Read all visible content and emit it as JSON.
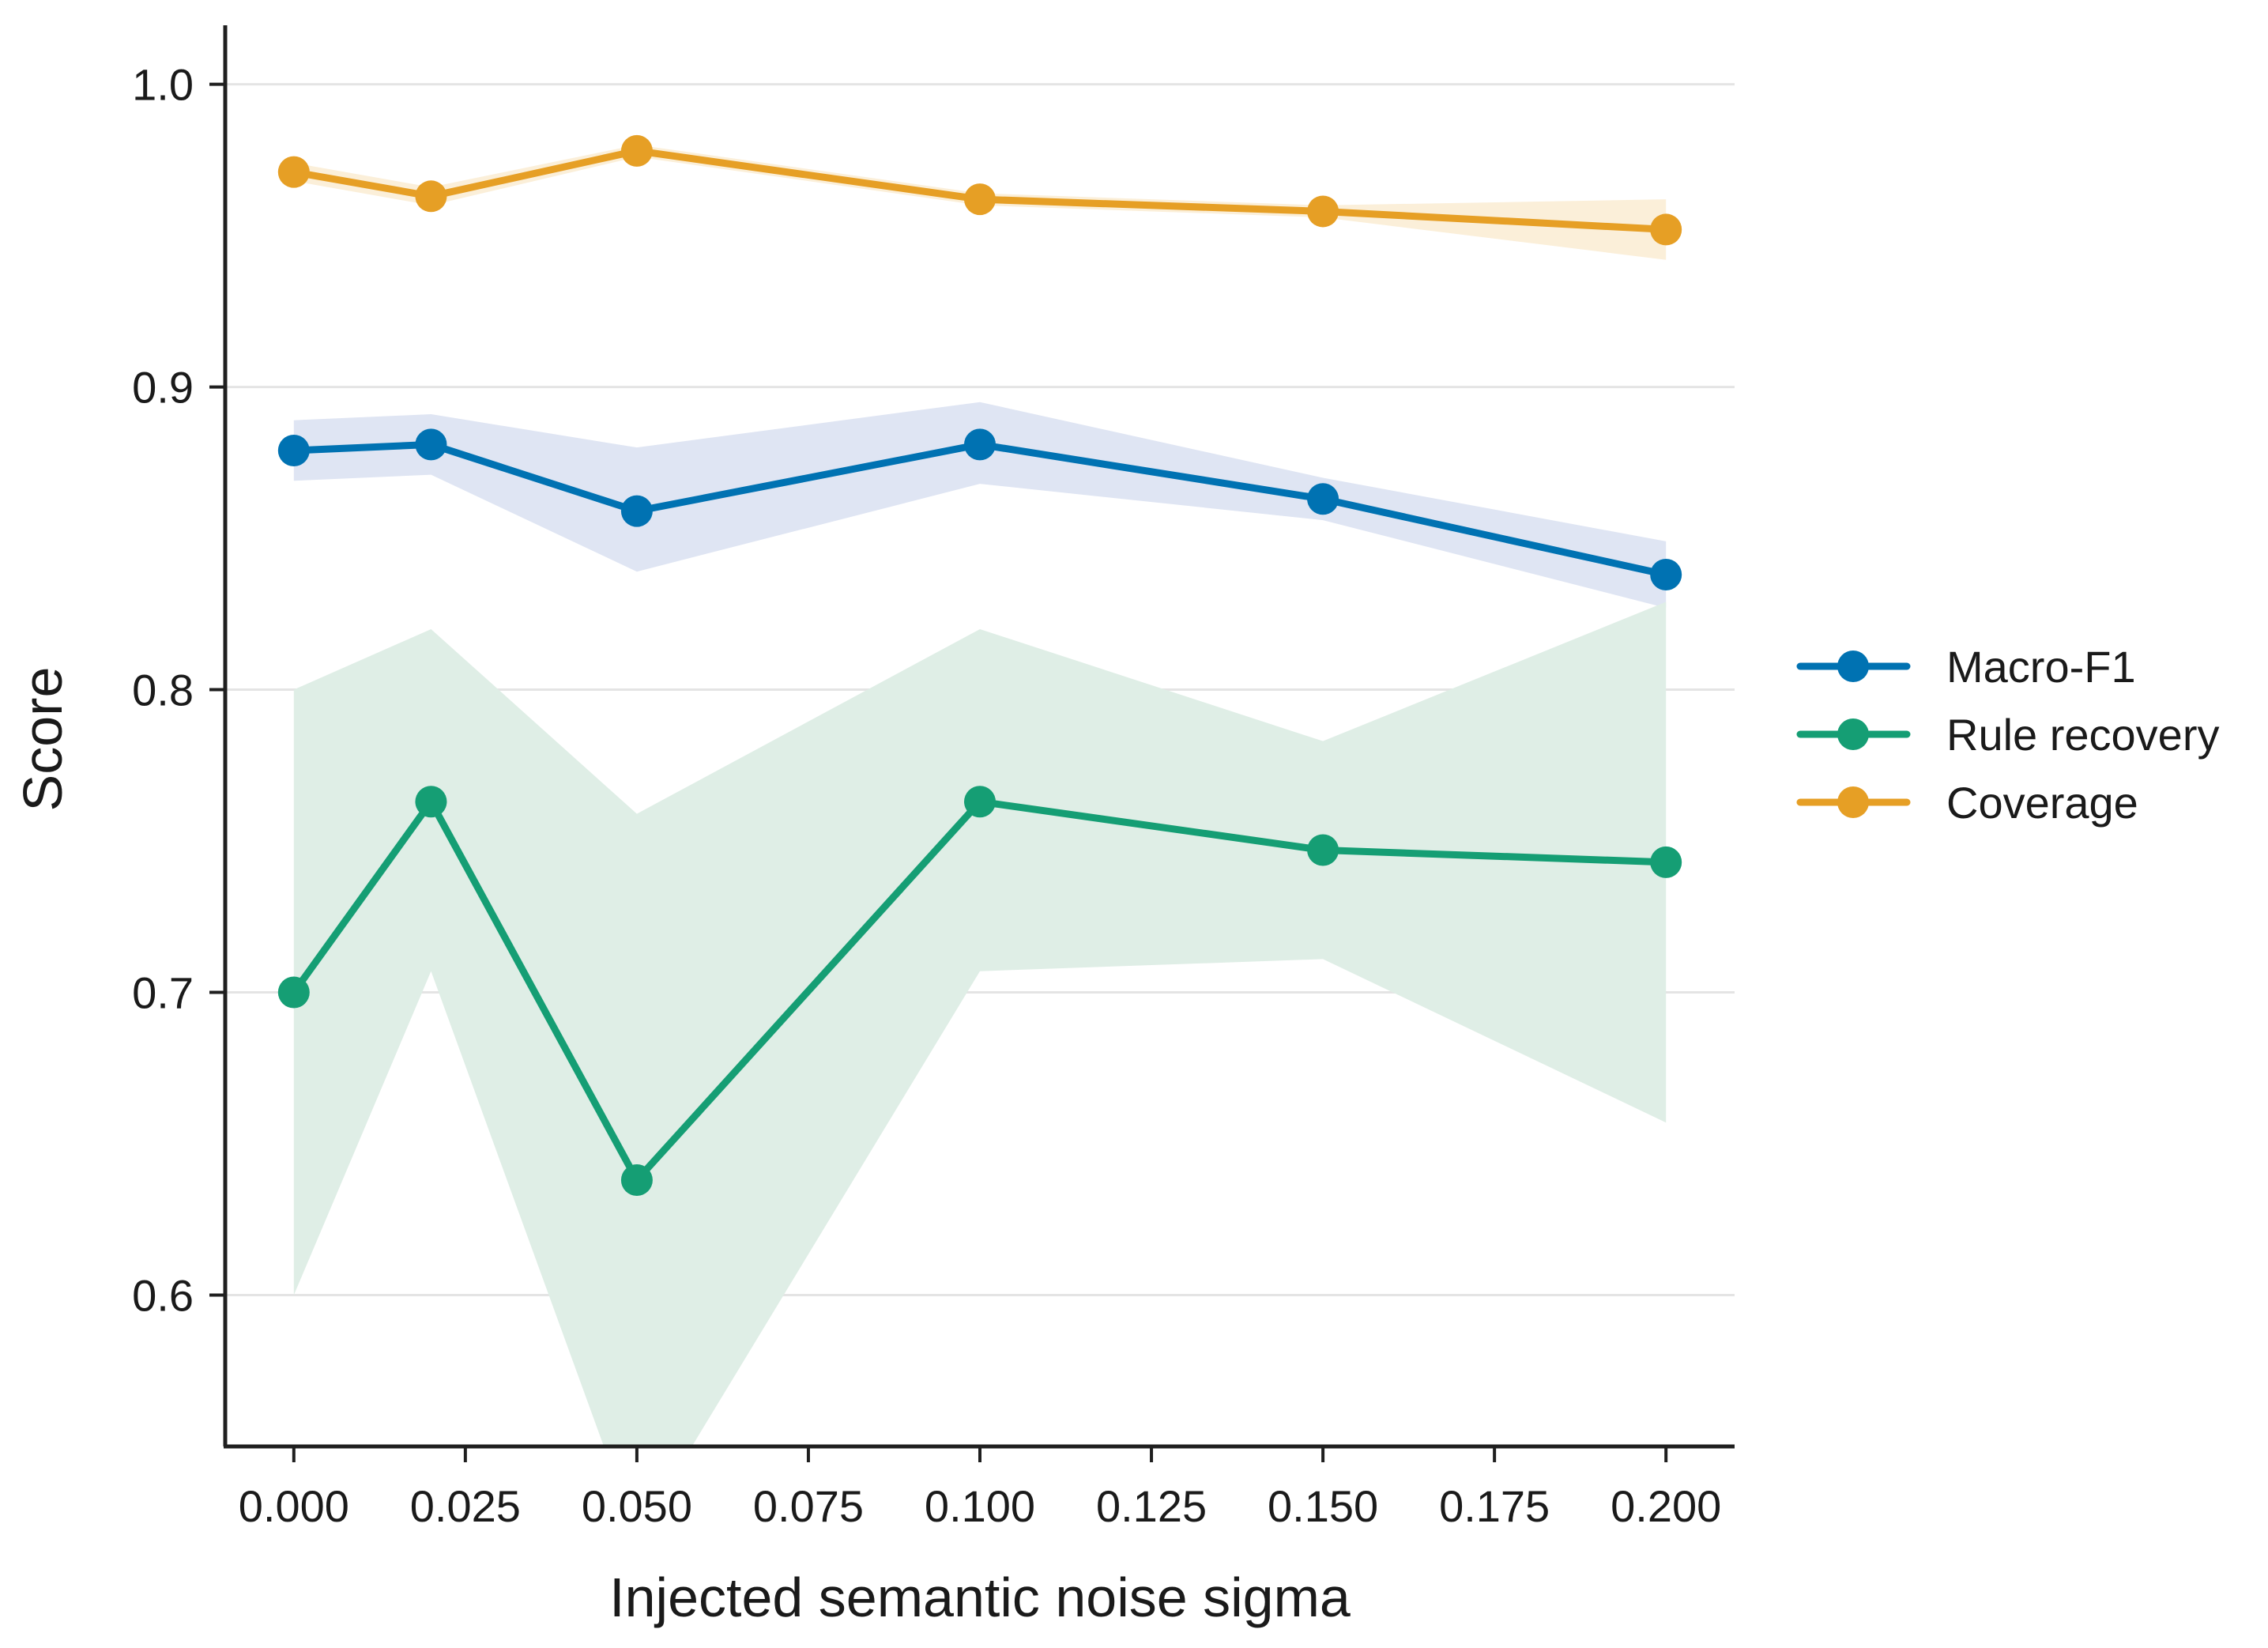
{
  "chart_data": {
    "type": "line",
    "title": "",
    "xlabel": "Injected semantic noise sigma",
    "ylabel": "Score",
    "xlim": [
      -0.01,
      0.21
    ],
    "ylim": [
      0.55,
      1.02
    ],
    "x_ticks": [
      "0.000",
      "0.025",
      "0.050",
      "0.075",
      "0.100",
      "0.125",
      "0.150",
      "0.175",
      "0.200"
    ],
    "y_ticks": [
      "0.6",
      "0.7",
      "0.8",
      "0.9",
      "1.0"
    ],
    "grid": "horizontal",
    "legend_position": "right",
    "x": [
      0.0,
      0.02,
      0.05,
      0.1,
      0.15,
      0.2
    ],
    "series": [
      {
        "name": "Macro-F1",
        "color": "#0072b2",
        "band_color": "#dfe5f3",
        "values": [
          0.879,
          0.881,
          0.859,
          0.881,
          0.863,
          0.838
        ],
        "lower": [
          0.869,
          0.871,
          0.839,
          0.868,
          0.856,
          0.827
        ],
        "upper": [
          0.889,
          0.891,
          0.88,
          0.895,
          0.87,
          0.849
        ]
      },
      {
        "name": "Rule recovery",
        "color": "#159e74",
        "band_color": "#dfeee6",
        "values": [
          0.7,
          0.763,
          0.638,
          0.763,
          0.747,
          0.743
        ],
        "lower": [
          0.6,
          0.707,
          0.52,
          0.707,
          0.711,
          0.657
        ],
        "upper": [
          0.8,
          0.82,
          0.759,
          0.82,
          0.783,
          0.829
        ]
      },
      {
        "name": "Coverage",
        "color": "#e69f25",
        "band_color": "#fbefd9",
        "values": [
          0.971,
          0.963,
          0.978,
          0.962,
          0.958,
          0.952
        ],
        "lower": [
          0.968,
          0.96,
          0.976,
          0.96,
          0.956,
          0.942
        ],
        "upper": [
          0.974,
          0.966,
          0.98,
          0.964,
          0.96,
          0.962
        ]
      }
    ]
  }
}
